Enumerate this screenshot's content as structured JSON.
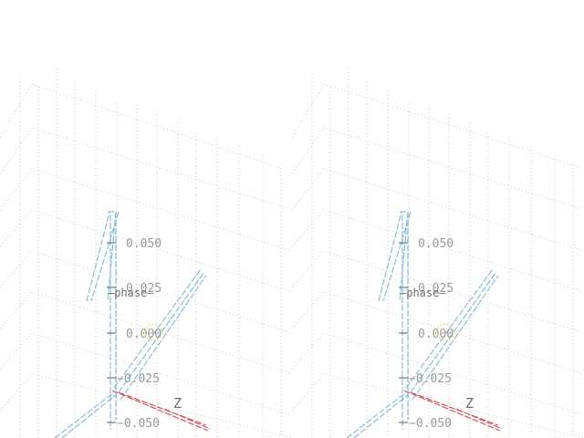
{
  "figure": {
    "description_type": "stereo pair of 3D axes",
    "panels": [
      {
        "id": "left",
        "ticks": [
          "0.050",
          "0.025",
          "0.000",
          "−0.025",
          "−0.050"
        ],
        "axis_name": "—phase—",
        "z_label": "Z"
      },
      {
        "id": "right",
        "ticks": [
          "0.050",
          "0.025",
          "0.000",
          "−0.025",
          "−0.050"
        ],
        "axis_name": "—phase—",
        "z_label": "Z"
      }
    ]
  },
  "colors": {
    "axis_blue": "#86bfd9",
    "axis_red": "#d4595f",
    "grid": "#c9c9c9",
    "marker": "#e2d86a"
  }
}
